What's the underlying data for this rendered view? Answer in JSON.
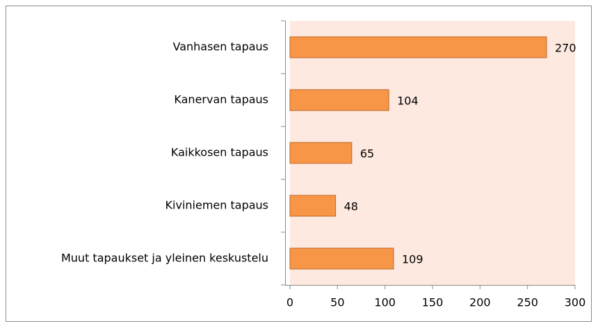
{
  "chart_data": {
    "type": "bar",
    "orientation": "horizontal",
    "categories": [
      "Vanhasen tapaus",
      "Kanervan tapaus",
      "Kaikkosen tapaus",
      "Kiviniemen tapaus",
      "Muut tapaukset ja yleinen keskustelu"
    ],
    "values": [
      270,
      104,
      65,
      48,
      109
    ],
    "color": "#f79646",
    "xlim": [
      0,
      300
    ],
    "xticks": [
      0,
      50,
      100,
      150,
      200,
      250,
      300
    ],
    "grid": false
  }
}
